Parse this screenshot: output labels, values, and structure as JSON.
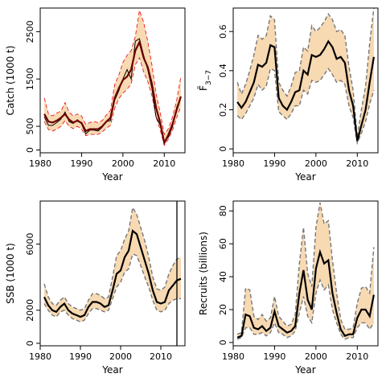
{
  "chart_data": [
    {
      "type": "line",
      "id": "catch",
      "xlabel": "Year",
      "ylabel": "Catch (1000 t)",
      "xlim": [
        1980,
        2015
      ],
      "ylim": [
        -60,
        3000
      ],
      "xticks": [
        1980,
        1990,
        2000,
        2010
      ],
      "yticks": [
        0,
        500,
        1500,
        2500
      ],
      "band_fill": "#f7d9b2",
      "band_edge": "#e8000b",
      "band_dash": true,
      "vline": null,
      "x": [
        1981,
        1982,
        1983,
        1984,
        1985,
        1986,
        1987,
        1988,
        1989,
        1990,
        1991,
        1992,
        1993,
        1994,
        1995,
        1996,
        1997,
        1998,
        1999,
        2000,
        2001,
        2002,
        2003,
        2004,
        2005,
        2006,
        2007,
        2008,
        2009,
        2010,
        2011,
        2012,
        2013,
        2014
      ],
      "observed": [
        700,
        520,
        520,
        580,
        650,
        800,
        600,
        560,
        640,
        550,
        340,
        420,
        420,
        400,
        480,
        600,
        620,
        1050,
        1250,
        1500,
        1700,
        1500,
        2300,
        2350,
        2000,
        1700,
        1300,
        700,
        530,
        180,
        270,
        500,
        900,
        1130
      ],
      "estimate": [
        760,
        600,
        580,
        620,
        680,
        760,
        640,
        580,
        620,
        570,
        400,
        440,
        440,
        440,
        500,
        600,
        680,
        1100,
        1300,
        1480,
        1550,
        1700,
        2100,
        2280,
        1950,
        1750,
        1400,
        900,
        580,
        150,
        320,
        550,
        850,
        1130
      ],
      "lower": [
        600,
        430,
        400,
        440,
        500,
        620,
        500,
        450,
        500,
        440,
        300,
        330,
        330,
        330,
        380,
        460,
        520,
        880,
        1080,
        1200,
        1280,
        1400,
        1800,
        1950,
        1650,
        1450,
        1150,
        700,
        430,
        100,
        230,
        420,
        680,
        920
      ],
      "upper": [
        1100,
        760,
        720,
        780,
        820,
        1000,
        800,
        720,
        760,
        720,
        540,
        580,
        600,
        580,
        620,
        740,
        840,
        1380,
        1580,
        1850,
        2000,
        2100,
        2400,
        2950,
        2700,
        2300,
        1800,
        1200,
        800,
        330,
        450,
        700,
        1050,
        1550
      ]
    },
    {
      "type": "line",
      "id": "fbar",
      "xlabel": "Year",
      "ylabel": "F̄",
      "ylabel_sub": "3−7",
      "xlim": [
        1980,
        2015
      ],
      "ylim": [
        -0.02,
        0.72
      ],
      "xticks": [
        1980,
        1990,
        2000,
        2010
      ],
      "yticks": [
        0.0,
        0.2,
        0.4,
        0.6
      ],
      "band_fill": "#f7d9b2",
      "band_edge": "#777777",
      "band_dash": true,
      "vline": null,
      "x": [
        1981,
        1982,
        1983,
        1984,
        1985,
        1986,
        1987,
        1988,
        1989,
        1990,
        1991,
        1992,
        1993,
        1994,
        1995,
        1996,
        1997,
        1998,
        1999,
        2000,
        2001,
        2002,
        2003,
        2004,
        2005,
        2006,
        2007,
        2008,
        2009,
        2010,
        2011,
        2012,
        2013,
        2014
      ],
      "observed": [],
      "estimate": [
        0.24,
        0.21,
        0.24,
        0.29,
        0.34,
        0.43,
        0.42,
        0.44,
        0.53,
        0.52,
        0.26,
        0.22,
        0.2,
        0.24,
        0.29,
        0.3,
        0.4,
        0.38,
        0.48,
        0.47,
        0.48,
        0.51,
        0.55,
        0.52,
        0.46,
        0.47,
        0.44,
        0.3,
        0.22,
        0.04,
        0.12,
        0.2,
        0.34,
        0.47
      ],
      "lower": [
        0.17,
        0.15,
        0.18,
        0.22,
        0.26,
        0.33,
        0.3,
        0.32,
        0.41,
        0.4,
        0.19,
        0.17,
        0.15,
        0.18,
        0.22,
        0.22,
        0.3,
        0.28,
        0.35,
        0.34,
        0.35,
        0.38,
        0.41,
        0.38,
        0.34,
        0.35,
        0.33,
        0.22,
        0.16,
        0.03,
        0.08,
        0.14,
        0.23,
        0.3
      ],
      "upper": [
        0.34,
        0.28,
        0.33,
        0.4,
        0.48,
        0.58,
        0.56,
        0.58,
        0.68,
        0.66,
        0.34,
        0.3,
        0.27,
        0.32,
        0.39,
        0.4,
        0.52,
        0.5,
        0.63,
        0.6,
        0.62,
        0.65,
        0.69,
        0.66,
        0.6,
        0.61,
        0.58,
        0.42,
        0.3,
        0.06,
        0.2,
        0.32,
        0.54,
        0.72
      ]
    },
    {
      "type": "line",
      "id": "ssb",
      "xlabel": "Year",
      "ylabel": "SSB (1000 t)",
      "xlim": [
        1980,
        2016
      ],
      "ylim": [
        -150,
        8600
      ],
      "xticks": [
        1980,
        1990,
        2000,
        2010
      ],
      "yticks": [
        0,
        2000,
        6000
      ],
      "band_fill": "#f7d9b2",
      "band_edge": "#777777",
      "band_dash": true,
      "vline": 2014,
      "x": [
        1981,
        1982,
        1983,
        1984,
        1985,
        1986,
        1987,
        1988,
        1989,
        1990,
        1991,
        1992,
        1993,
        1994,
        1995,
        1996,
        1997,
        1998,
        1999,
        2000,
        2001,
        2002,
        2003,
        2004,
        2005,
        2006,
        2007,
        2008,
        2009,
        2010,
        2011,
        2012,
        2013,
        2014,
        2015
      ],
      "observed": [],
      "estimate": [
        2800,
        2300,
        2000,
        1900,
        2200,
        2400,
        2000,
        1800,
        1700,
        1600,
        1700,
        2200,
        2500,
        2500,
        2400,
        2200,
        2300,
        3200,
        4200,
        4400,
        5200,
        5600,
        6800,
        6600,
        5800,
        5000,
        4200,
        3200,
        2500,
        2400,
        2500,
        3200,
        3500,
        3800,
        3900
      ],
      "lower": [
        2400,
        2000,
        1700,
        1600,
        1900,
        2000,
        1700,
        1500,
        1400,
        1300,
        1400,
        1800,
        2100,
        2100,
        2000,
        1900,
        2000,
        2700,
        3400,
        3700,
        4300,
        4500,
        5400,
        5300,
        4700,
        4000,
        3400,
        2600,
        2000,
        1900,
        2000,
        2400,
        2600,
        2700,
        2700
      ],
      "upper": [
        3600,
        2800,
        2400,
        2300,
        2600,
        2800,
        2400,
        2200,
        2100,
        2000,
        2100,
        2600,
        3000,
        3000,
        2900,
        2700,
        2800,
        4000,
        5300,
        5600,
        6300,
        6800,
        8200,
        7800,
        7000,
        6200,
        5200,
        4000,
        3300,
        3200,
        3400,
        4200,
        4700,
        5100,
        5200
      ]
    },
    {
      "type": "line",
      "id": "recruits",
      "xlabel": "Year",
      "ylabel": "Recruits (billions)",
      "xlim": [
        1980,
        2015
      ],
      "ylim": [
        -2,
        86
      ],
      "xticks": [
        1980,
        1990,
        2000,
        2010
      ],
      "yticks": [
        0,
        20,
        40,
        60,
        80
      ],
      "band_fill": "#f7d9b2",
      "band_edge": "#777777",
      "band_dash": true,
      "vline": null,
      "x": [
        1981,
        1982,
        1983,
        1984,
        1985,
        1986,
        1987,
        1988,
        1989,
        1990,
        1991,
        1992,
        1993,
        1994,
        1995,
        1996,
        1997,
        1998,
        1999,
        2000,
        2001,
        2002,
        2003,
        2004,
        2005,
        2006,
        2007,
        2008,
        2009,
        2010,
        2011,
        2012,
        2013,
        2014
      ],
      "observed": [],
      "estimate": [
        3,
        4,
        17,
        16,
        9,
        8,
        10,
        7,
        9,
        19,
        10,
        8,
        6,
        7,
        10,
        30,
        44,
        26,
        20,
        45,
        55,
        48,
        50,
        30,
        18,
        8,
        4,
        5,
        5,
        15,
        20,
        20,
        16,
        29
      ],
      "lower": [
        2,
        3,
        9,
        9,
        5,
        5,
        6,
        4,
        6,
        12,
        6,
        5,
        3,
        4,
        7,
        18,
        28,
        16,
        12,
        30,
        38,
        32,
        35,
        20,
        12,
        5,
        2,
        3,
        3,
        9,
        12,
        12,
        8,
        12
      ],
      "upper": [
        5,
        6,
        33,
        32,
        16,
        14,
        17,
        13,
        15,
        28,
        16,
        13,
        10,
        11,
        17,
        48,
        70,
        42,
        34,
        70,
        85,
        72,
        74,
        50,
        30,
        14,
        8,
        8,
        9,
        24,
        33,
        34,
        30,
        58
      ]
    }
  ]
}
